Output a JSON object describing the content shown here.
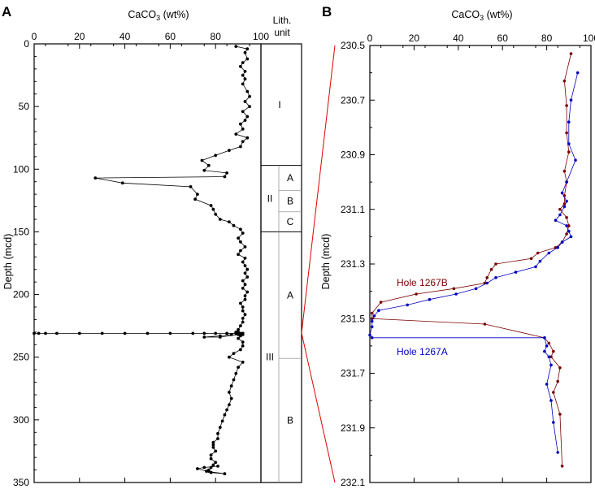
{
  "panels": {
    "a_label": "A",
    "b_label": "B"
  },
  "lith_header": [
    "Lith.",
    "unit"
  ],
  "lith_units": [
    {
      "label": "I",
      "top": 0,
      "bottom": 97
    },
    {
      "label": "II",
      "top": 97,
      "bottom": 150,
      "subunits": [
        {
          "label": "A",
          "top": 97,
          "bottom": 117
        },
        {
          "label": "B",
          "top": 117,
          "bottom": 134
        },
        {
          "label": "C",
          "top": 134,
          "bottom": 150
        }
      ]
    },
    {
      "label": "III",
      "top": 150,
      "bottom": 350,
      "subunits": [
        {
          "label": "A",
          "top": 150,
          "bottom": 251
        },
        {
          "label": "B",
          "top": 251,
          "bottom": 350
        }
      ]
    }
  ],
  "chart_data": [
    {
      "type": "line",
      "panel": "A",
      "xlabel": "CaCO3 (wt%)",
      "ylabel": "Depth (mcd)",
      "xlim": [
        0,
        100
      ],
      "ylim": [
        0,
        350
      ],
      "y_inverted": true,
      "x_axis_position": "top",
      "xticks": [
        0,
        20,
        40,
        60,
        80,
        100
      ],
      "yticks": [
        0,
        50,
        100,
        150,
        200,
        250,
        300,
        350
      ],
      "series": [
        {
          "color": "#000000",
          "x": [
            89,
            94,
            93,
            94,
            92,
            91,
            93,
            92,
            93,
            92,
            94,
            95,
            93,
            95,
            92,
            94,
            93,
            91,
            92,
            89,
            94,
            92,
            91,
            86,
            80,
            74,
            77,
            75,
            85,
            84,
            27,
            39,
            69,
            72,
            71,
            78,
            79,
            80,
            82,
            86,
            88,
            91,
            92,
            90,
            91,
            93,
            91,
            90,
            93,
            92,
            93,
            94,
            93,
            94,
            92,
            93,
            92,
            94,
            93,
            93,
            91,
            92,
            92,
            93,
            92,
            92,
            91,
            90,
            89,
            87,
            82,
            75,
            82,
            90,
            89,
            90,
            92,
            0,
            2,
            5,
            10,
            20,
            30,
            40,
            50,
            60,
            70,
            75,
            80,
            85,
            90,
            92,
            91,
            92,
            91,
            90,
            92,
            92,
            91,
            88,
            86,
            92,
            90,
            89,
            88,
            87,
            86,
            87,
            86,
            85,
            84,
            83,
            82,
            81,
            81,
            79,
            79,
            79,
            80,
            78,
            78,
            80,
            79,
            78,
            77,
            77,
            78,
            84,
            76,
            72,
            75,
            81
          ],
          "y": [
            2,
            4,
            7,
            12,
            15,
            18,
            22,
            25,
            28,
            32,
            38,
            42,
            46,
            50,
            54,
            58,
            61,
            64,
            68,
            72,
            75,
            78,
            82,
            85,
            89,
            93,
            97,
            101,
            103,
            106,
            107,
            111,
            114,
            120,
            124,
            129,
            132,
            136,
            140,
            142,
            145,
            148,
            151,
            155,
            158,
            162,
            165,
            168,
            171,
            174,
            177,
            180,
            183,
            186,
            189,
            192,
            195,
            198,
            201,
            204,
            207,
            210,
            213,
            216,
            219,
            222,
            225,
            228,
            230,
            232,
            233,
            234,
            234,
            232,
            231,
            230,
            231,
            231,
            231,
            231,
            231,
            231,
            231,
            231,
            231,
            231,
            231,
            231,
            231,
            231,
            231,
            231,
            231,
            232,
            233,
            235,
            238,
            241,
            244,
            247,
            250,
            254,
            258,
            263,
            268,
            273,
            278,
            283,
            288,
            292,
            296,
            301,
            306,
            311,
            315,
            318,
            320,
            322,
            325,
            328,
            331,
            334,
            336,
            338,
            340,
            341,
            342,
            343,
            341,
            339,
            338,
            337
          ]
        }
      ]
    },
    {
      "type": "line",
      "panel": "B",
      "xlabel": "CaCO3 (wt%)",
      "ylabel": "Depth (mcd)",
      "xlim": [
        0,
        100
      ],
      "ylim": [
        230.5,
        232.1
      ],
      "y_inverted": true,
      "x_axis_position": "top",
      "xticks": [
        0,
        20,
        40,
        60,
        80,
        100
      ],
      "yticks": [
        230.5,
        230.7,
        230.9,
        231.1,
        231.3,
        231.5,
        231.7,
        231.9,
        232.1
      ],
      "series": [
        {
          "name": "Hole 1267B",
          "color": "#7a0000",
          "label_color": "#7a0000",
          "x": [
            91,
            88,
            89,
            89,
            90,
            88,
            89,
            88,
            88,
            86,
            89,
            90,
            89,
            87,
            84,
            76,
            73,
            57,
            55,
            53,
            52,
            38,
            21,
            5,
            1,
            1,
            52,
            79,
            81,
            83,
            82,
            86,
            85,
            83,
            86,
            87
          ],
          "y": [
            230.53,
            230.63,
            230.72,
            230.82,
            230.89,
            230.96,
            231.0,
            231.05,
            231.08,
            231.1,
            231.13,
            231.16,
            231.19,
            231.22,
            231.24,
            231.26,
            231.28,
            231.3,
            231.32,
            231.35,
            231.37,
            231.39,
            231.41,
            231.44,
            231.48,
            231.5,
            231.52,
            231.57,
            231.59,
            231.62,
            231.64,
            231.68,
            231.73,
            231.77,
            231.85,
            232.04
          ]
        },
        {
          "name": "Hole 1267A",
          "color": "#0000c0",
          "label_color": "#0000c0",
          "x": [
            94,
            91,
            90,
            90,
            93,
            89,
            87,
            89,
            88,
            86,
            84,
            89,
            90,
            91,
            87,
            85,
            81,
            77,
            75,
            66,
            57,
            53,
            48,
            39,
            27,
            17,
            4,
            2,
            1,
            1,
            0,
            1,
            79,
            80,
            79,
            81,
            82,
            80,
            82,
            83,
            85
          ],
          "y": [
            230.6,
            230.7,
            230.78,
            230.86,
            230.92,
            231.0,
            231.04,
            231.07,
            231.09,
            231.12,
            231.14,
            231.16,
            231.18,
            231.2,
            231.22,
            231.24,
            231.26,
            231.29,
            231.31,
            231.33,
            231.35,
            231.37,
            231.39,
            231.41,
            231.43,
            231.45,
            231.47,
            231.49,
            231.51,
            231.53,
            231.56,
            231.57,
            231.57,
            231.6,
            231.62,
            231.64,
            231.67,
            231.74,
            231.8,
            231.88,
            231.99
          ]
        }
      ]
    }
  ]
}
